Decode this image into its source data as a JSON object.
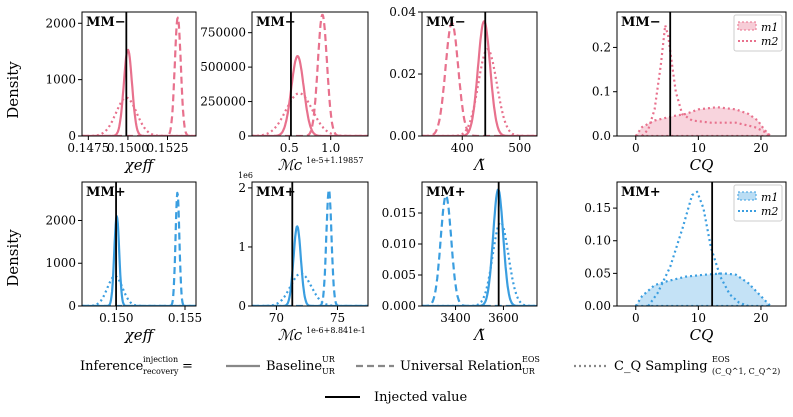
{
  "figure": {
    "ylabel": "Density",
    "legend": {
      "prefix": "Inference",
      "prefix_sup": "injection",
      "prefix_sub": "recovery",
      "equals": "=",
      "entries": [
        {
          "name": "Baseline",
          "sup": "UR",
          "sub": "UR",
          "style": "solid"
        },
        {
          "name": "Universal Relation",
          "sup": "EOS",
          "sub": "UR",
          "style": "dashed"
        },
        {
          "name": "C_Q Sampling",
          "sup": "EOS",
          "sub": "(C_Q^1, C_Q^2)",
          "style": "dotted"
        }
      ],
      "injected_label": "Injected value"
    }
  },
  "chart_data": [
    {
      "type": "line",
      "row": "MM-",
      "corner": "MM−",
      "color": "#e8718d",
      "xlabel": "χeff",
      "xlim": [
        0.1471,
        0.1543
      ],
      "ylim": [
        0,
        2200
      ],
      "xticks": [
        0.1475,
        0.15,
        0.1525
      ],
      "xtick_labels": [
        "0.1475",
        "0.1500",
        "0.1525"
      ],
      "yticks": [
        0,
        1000,
        2000
      ],
      "ytick_labels": [
        "0",
        "1000",
        "2000"
      ],
      "injected": 0.1499,
      "series": [
        {
          "name": "Baseline",
          "style": "solid",
          "mean": 0.15,
          "sd": 0.00026,
          "amp": 1530
        },
        {
          "name": "Universal Relation",
          "style": "dashed",
          "mean": 0.15315,
          "sd": 0.00019,
          "amp": 2100
        },
        {
          "name": "C_Q Sampling",
          "style": "dotted",
          "mean": 0.1499,
          "sd": 0.00065,
          "amp": 680
        }
      ]
    },
    {
      "type": "line",
      "row": "MM-",
      "corner": "MM−",
      "color": "#e8718d",
      "xlabel": "ℳc",
      "offset_label": "1e-5+1.19857",
      "xlim": [
        0.05,
        1.45
      ],
      "ylim": [
        0,
        900000
      ],
      "xticks": [
        0.5,
        1.0
      ],
      "xtick_labels": [
        "0.5",
        "1.0"
      ],
      "yticks": [
        0,
        250000,
        500000,
        750000
      ],
      "ytick_labels": [
        "0",
        "250000",
        "500000",
        "750000"
      ],
      "injected": 0.52,
      "series": [
        {
          "name": "Baseline",
          "style": "solid",
          "mean": 0.6,
          "sd": 0.075,
          "amp": 580000
        },
        {
          "name": "Universal Relation",
          "style": "dashed",
          "mean": 0.9,
          "sd": 0.055,
          "amp": 880000
        },
        {
          "name": "C_Q Sampling",
          "style": "dotted",
          "mean": 0.62,
          "sd": 0.16,
          "amp": 310000
        }
      ]
    },
    {
      "type": "line",
      "row": "MM-",
      "corner": "MM−",
      "color": "#e8718d",
      "xlabel": "Λ̃",
      "xlim": [
        330,
        530
      ],
      "ylim": [
        0,
        0.04
      ],
      "xticks": [
        400,
        500
      ],
      "xtick_labels": [
        "400",
        "500"
      ],
      "yticks": [
        0,
        0.02,
        0.04
      ],
      "ytick_labels": [
        "0.00",
        "0.02",
        "0.04"
      ],
      "injected": 440,
      "series": [
        {
          "name": "Baseline",
          "style": "solid",
          "mean": 438,
          "sd": 10.5,
          "amp": 0.037
        },
        {
          "name": "Universal Relation",
          "style": "dashed",
          "mean": 382,
          "sd": 11,
          "amp": 0.0365
        },
        {
          "name": "C_Q Sampling",
          "style": "dotted",
          "mean": 444,
          "sd": 16,
          "amp": 0.028
        }
      ]
    },
    {
      "type": "line",
      "row": "MM-",
      "corner": "MM−",
      "color": "#e8718d",
      "xlabel": "CQ",
      "xlim": [
        -3,
        24
      ],
      "ylim": [
        0,
        0.28
      ],
      "xticks": [
        0,
        10,
        20
      ],
      "xtick_labels": [
        "0",
        "10",
        "20"
      ],
      "yticks": [
        0,
        0.1,
        0.2
      ],
      "ytick_labels": [
        "0.0",
        "0.1",
        "0.2"
      ],
      "injected": 5.5,
      "legend": [
        "m1",
        "m2"
      ],
      "series": [
        {
          "name": "m1",
          "style": "filled",
          "points": [
            [
              0,
              0
            ],
            [
              1,
              0.02
            ],
            [
              3,
              0.035
            ],
            [
              6,
              0.045
            ],
            [
              8,
              0.05
            ],
            [
              10,
              0.06
            ],
            [
              13,
              0.065
            ],
            [
              16,
              0.06
            ],
            [
              18,
              0.05
            ],
            [
              19.5,
              0.035
            ],
            [
              20.5,
              0.015
            ],
            [
              21.5,
              0
            ]
          ]
        },
        {
          "name": "m2",
          "style": "dotted",
          "points": [
            [
              1,
              0
            ],
            [
              2,
              0.015
            ],
            [
              3,
              0.06
            ],
            [
              4,
              0.16
            ],
            [
              4.7,
              0.25
            ],
            [
              5.2,
              0.225
            ],
            [
              5.7,
              0.17
            ],
            [
              6.4,
              0.1
            ],
            [
              7.4,
              0.05
            ],
            [
              9,
              0.035
            ],
            [
              12,
              0.03
            ],
            [
              16,
              0.03
            ],
            [
              19,
              0.02
            ],
            [
              20.5,
              0.01
            ],
            [
              21.5,
              0
            ]
          ]
        }
      ]
    },
    {
      "type": "line",
      "row": "MM+",
      "corner": "MM+",
      "color": "#3a9ee0",
      "xlabel": "χeff",
      "xlim": [
        0.1475,
        0.1558
      ],
      "ylim": [
        0,
        2900
      ],
      "xticks": [
        0.15,
        0.155
      ],
      "xtick_labels": [
        "0.150",
        "0.155"
      ],
      "yticks": [
        0,
        1000,
        2000
      ],
      "ytick_labels": [
        "0",
        "1000",
        "2000"
      ],
      "injected": 0.14998,
      "series": [
        {
          "name": "Baseline",
          "style": "solid",
          "mean": 0.15003,
          "sd": 0.00018,
          "amp": 2100
        },
        {
          "name": "Universal Relation",
          "style": "dashed",
          "mean": 0.15445,
          "sd": 0.00014,
          "amp": 2650
        },
        {
          "name": "C_Q Sampling",
          "style": "dotted",
          "mean": 0.1499,
          "sd": 0.00055,
          "amp": 700
        }
      ]
    },
    {
      "type": "line",
      "row": "MM+",
      "corner": "MM+",
      "color": "#3a9ee0",
      "xlabel": "ℳc",
      "offset_label": "1e-6+8.841e-1",
      "yscale_label": "1e6",
      "xlim": [
        68,
        77.5
      ],
      "ylim": [
        0,
        2.1
      ],
      "xticks": [
        70,
        75
      ],
      "xtick_labels": [
        "70",
        "75"
      ],
      "yticks": [
        0,
        1,
        2
      ],
      "ytick_labels": [
        "0",
        "1",
        "2"
      ],
      "injected": 71.3,
      "series": [
        {
          "name": "Baseline",
          "style": "solid",
          "mean": 71.7,
          "sd": 0.3,
          "amp": 1.35
        },
        {
          "name": "Universal Relation",
          "style": "dashed",
          "mean": 74.3,
          "sd": 0.21,
          "amp": 1.97
        },
        {
          "name": "C_Q Sampling",
          "style": "dotted",
          "mean": 72.0,
          "sd": 0.85,
          "amp": 0.55
        }
      ]
    },
    {
      "type": "line",
      "row": "MM+",
      "corner": "MM+",
      "color": "#3a9ee0",
      "xlabel": "Λ̃",
      "xlim": [
        3260,
        3740
      ],
      "ylim": [
        0,
        0.02
      ],
      "xticks": [
        3400,
        3600
      ],
      "xtick_labels": [
        "3400",
        "3600"
      ],
      "yticks": [
        0,
        0.005,
        0.01,
        0.015
      ],
      "ytick_labels": [
        "0.000",
        "0.005",
        "0.010",
        "0.015"
      ],
      "injected": 3580,
      "series": [
        {
          "name": "Baseline",
          "style": "solid",
          "mean": 3578,
          "sd": 21,
          "amp": 0.0188
        },
        {
          "name": "Universal Relation",
          "style": "dashed",
          "mean": 3360,
          "sd": 22,
          "amp": 0.0178
        },
        {
          "name": "C_Q Sampling",
          "style": "dotted",
          "mean": 3588,
          "sd": 33,
          "amp": 0.0135
        }
      ]
    },
    {
      "type": "line",
      "row": "MM+",
      "corner": "MM+",
      "color": "#3a9ee0",
      "xlabel": "CQ",
      "xlim": [
        -3,
        24
      ],
      "ylim": [
        0,
        0.19
      ],
      "xticks": [
        0,
        10,
        20
      ],
      "xtick_labels": [
        "0",
        "10",
        "20"
      ],
      "yticks": [
        0,
        0.05,
        0.1,
        0.15
      ],
      "ytick_labels": [
        "0.00",
        "0.05",
        "0.10",
        "0.15"
      ],
      "injected": 12.2,
      "legend": [
        "m1",
        "m2"
      ],
      "series": [
        {
          "name": "m1",
          "style": "filled",
          "points": [
            [
              0,
              0
            ],
            [
              1,
              0.015
            ],
            [
              3,
              0.032
            ],
            [
              5,
              0.038
            ],
            [
              8,
              0.045
            ],
            [
              11,
              0.048
            ],
            [
              14,
              0.05
            ],
            [
              16,
              0.048
            ],
            [
              18,
              0.035
            ],
            [
              20,
              0.015
            ],
            [
              21.5,
              0
            ]
          ]
        },
        {
          "name": "m2",
          "style": "dotted",
          "points": [
            [
              2,
              0
            ],
            [
              3.5,
              0.02
            ],
            [
              5.5,
              0.06
            ],
            [
              7.5,
              0.12
            ],
            [
              9,
              0.17
            ],
            [
              9.8,
              0.175
            ],
            [
              10.8,
              0.15
            ],
            [
              12,
              0.09
            ],
            [
              13.5,
              0.045
            ],
            [
              15,
              0.018
            ],
            [
              16.5,
              0.005
            ],
            [
              18,
              0
            ]
          ]
        }
      ]
    }
  ]
}
